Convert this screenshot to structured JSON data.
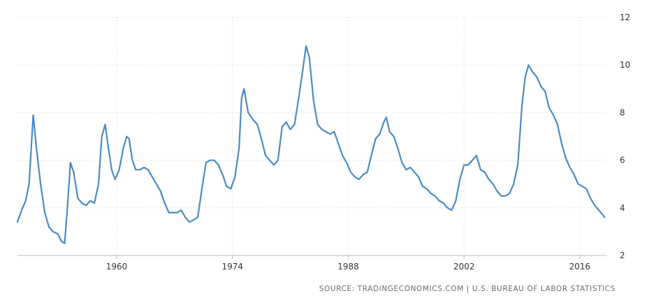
{
  "chart_data": {
    "type": "line",
    "title": "",
    "xlabel": "",
    "ylabel": "",
    "xlim": [
      1948,
      2019.3
    ],
    "ylim": [
      2,
      12
    ],
    "x_ticks": [
      1960,
      1974,
      1988,
      2002,
      2016
    ],
    "x_tick_labels": [
      "1960",
      "1974",
      "1988",
      "2002",
      "2016"
    ],
    "y_ticks": [
      2,
      4,
      6,
      8,
      10,
      12
    ],
    "y_tick_labels": [
      "2",
      "4",
      "6",
      "8",
      "10",
      "12"
    ],
    "grid": {
      "x": true,
      "y": true,
      "style": "dotted"
    },
    "line_color": "#4a8bc1",
    "series": [
      {
        "x": [
          1948.0,
          1948.5,
          1949.0,
          1949.4,
          1949.7,
          1949.9,
          1950.3,
          1950.8,
          1951.3,
          1951.8,
          1952.3,
          1952.9,
          1953.3,
          1953.7,
          1954.0,
          1954.4,
          1954.8,
          1955.3,
          1955.8,
          1956.3,
          1956.8,
          1957.3,
          1957.8,
          1958.2,
          1958.6,
          1959.0,
          1959.4,
          1959.8,
          1960.3,
          1960.8,
          1961.2,
          1961.5,
          1961.9,
          1962.3,
          1962.8,
          1963.3,
          1963.8,
          1964.3,
          1964.8,
          1965.3,
          1965.8,
          1966.3,
          1966.8,
          1967.3,
          1967.8,
          1968.3,
          1968.8,
          1969.3,
          1969.8,
          1970.3,
          1970.8,
          1971.3,
          1971.8,
          1972.3,
          1972.8,
          1973.3,
          1973.8,
          1974.3,
          1974.8,
          1975.1,
          1975.4,
          1975.9,
          1976.5,
          1977.0,
          1977.5,
          1978.0,
          1978.5,
          1979.0,
          1979.5,
          1980.0,
          1980.5,
          1981.0,
          1981.5,
          1982.0,
          1982.5,
          1982.9,
          1983.3,
          1983.8,
          1984.3,
          1984.8,
          1985.3,
          1985.8,
          1986.3,
          1986.8,
          1987.3,
          1987.8,
          1988.3,
          1988.8,
          1989.3,
          1989.8,
          1990.3,
          1990.8,
          1991.3,
          1991.8,
          1992.3,
          1992.6,
          1993.0,
          1993.5,
          1994.0,
          1994.5,
          1995.0,
          1995.5,
          1996.0,
          1996.5,
          1997.0,
          1997.5,
          1998.0,
          1998.5,
          1999.0,
          1999.5,
          2000.0,
          2000.5,
          2001.0,
          2001.5,
          2002.0,
          2002.5,
          2003.0,
          2003.5,
          2004.0,
          2004.5,
          2005.0,
          2005.5,
          2006.0,
          2006.5,
          2007.0,
          2007.5,
          2008.0,
          2008.5,
          2009.0,
          2009.4,
          2009.8,
          2010.3,
          2010.8,
          2011.3,
          2011.8,
          2012.3,
          2012.8,
          2013.3,
          2013.8,
          2014.3,
          2014.8,
          2015.3,
          2015.8,
          2016.3,
          2016.8,
          2017.3,
          2017.8,
          2018.3,
          2018.8,
          2019.0
        ],
        "y": [
          3.4,
          3.9,
          4.3,
          5.0,
          6.7,
          7.9,
          6.5,
          5.0,
          3.8,
          3.2,
          3.0,
          2.9,
          2.6,
          2.5,
          3.8,
          5.9,
          5.5,
          4.4,
          4.2,
          4.1,
          4.3,
          4.2,
          5.0,
          7.0,
          7.5,
          6.5,
          5.6,
          5.2,
          5.6,
          6.5,
          7.0,
          6.9,
          6.0,
          5.6,
          5.6,
          5.7,
          5.6,
          5.3,
          5.0,
          4.7,
          4.2,
          3.8,
          3.8,
          3.8,
          3.9,
          3.6,
          3.4,
          3.5,
          3.6,
          4.8,
          5.9,
          6.0,
          6.0,
          5.8,
          5.4,
          4.9,
          4.8,
          5.3,
          6.5,
          8.6,
          9.0,
          8.0,
          7.7,
          7.5,
          6.9,
          6.2,
          6.0,
          5.8,
          6.0,
          7.4,
          7.6,
          7.3,
          7.5,
          8.6,
          9.8,
          10.8,
          10.3,
          8.5,
          7.5,
          7.3,
          7.2,
          7.1,
          7.2,
          6.7,
          6.2,
          5.9,
          5.5,
          5.3,
          5.2,
          5.4,
          5.5,
          6.2,
          6.9,
          7.1,
          7.6,
          7.8,
          7.2,
          7.0,
          6.5,
          5.9,
          5.6,
          5.7,
          5.5,
          5.3,
          4.9,
          4.8,
          4.6,
          4.5,
          4.3,
          4.2,
          4.0,
          3.9,
          4.3,
          5.2,
          5.8,
          5.8,
          6.0,
          6.2,
          5.6,
          5.5,
          5.2,
          5.0,
          4.7,
          4.5,
          4.5,
          4.6,
          5.0,
          5.8,
          8.3,
          9.5,
          10.0,
          9.7,
          9.5,
          9.1,
          8.9,
          8.2,
          7.9,
          7.5,
          6.7,
          6.1,
          5.7,
          5.4,
          5.0,
          4.9,
          4.8,
          4.4,
          4.1,
          3.9,
          3.7,
          3.6
        ]
      }
    ]
  },
  "source_text": "SOURCE: TRADINGECONOMICS.COM  |  U.S. BUREAU OF LABOR STATISTICS"
}
